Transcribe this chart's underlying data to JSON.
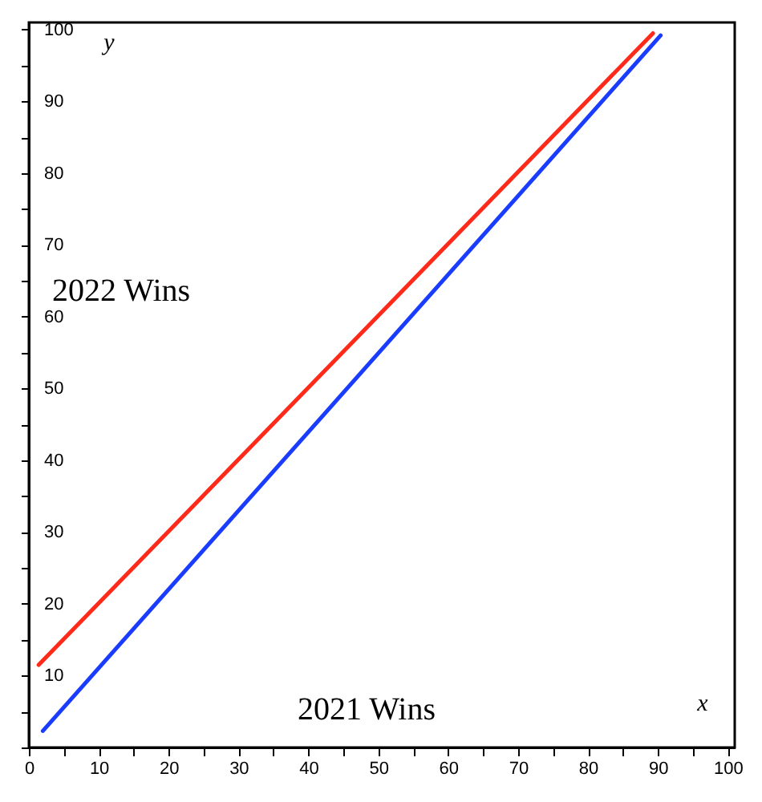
{
  "chart_data": {
    "type": "line",
    "xlabel": "2021 Wins",
    "ylabel": "2022 Wins",
    "annotations": [
      "x",
      "y"
    ],
    "series": [
      {
        "color": "#ff2a1a",
        "x": [
          1.4,
          89.3
        ],
        "values": [
          11.5,
          99.5
        ]
      },
      {
        "color": "#1a3cff",
        "x": [
          2,
          90.4
        ],
        "values": [
          2.3,
          99.2
        ]
      }
    ],
    "xlim": [
      0,
      101
    ],
    "ylim": [
      0,
      101
    ],
    "xticks": [
      0,
      {
        "value": 5,
        "label": null
      },
      10,
      {
        "value": 15,
        "label": null
      },
      20,
      {
        "value": 25,
        "label": null
      },
      30,
      {
        "value": 35,
        "label": null
      },
      40,
      {
        "value": 45,
        "label": null
      },
      50,
      {
        "value": 55,
        "label": null
      },
      60,
      {
        "value": 65,
        "label": null
      },
      70,
      {
        "value": 75,
        "label": null
      },
      80,
      {
        "value": 85,
        "label": null
      },
      90,
      {
        "value": 95,
        "label": null
      },
      100
    ],
    "yticks": [
      {
        "value": 0,
        "label": null
      },
      {
        "value": 5,
        "label": null
      },
      10,
      {
        "value": 15,
        "label": null
      },
      20,
      {
        "value": 25,
        "label": null
      },
      30,
      {
        "value": 35,
        "label": null
      },
      40,
      {
        "value": 45,
        "label": null
      },
      50,
      {
        "value": 55,
        "label": null
      },
      60,
      {
        "value": 65,
        "label": null
      },
      70,
      {
        "value": 75,
        "label": null
      },
      80,
      {
        "value": 85,
        "label": null
      },
      90,
      {
        "value": 95,
        "label": null
      },
      100
    ],
    "grid": false,
    "legend": false,
    "marker": "none",
    "line_style": "solid"
  }
}
